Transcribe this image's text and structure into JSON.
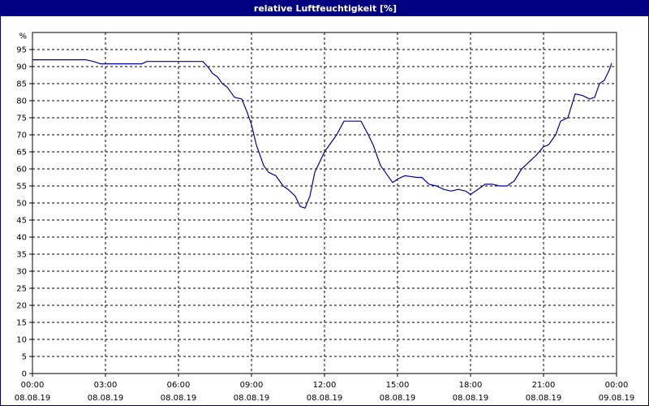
{
  "window": {
    "title": "relative Luftfeuchtigkeit [%]"
  },
  "colors": {
    "title_bar": "#000080",
    "series": "#0000a0",
    "grid": "#000000",
    "background": "#ffffff"
  },
  "chart_data": {
    "type": "line",
    "title": "relative Luftfeuchtigkeit [%]",
    "ylabel": "%",
    "xlabel": "",
    "ylim": [
      0,
      100
    ],
    "yticks": [
      0,
      5,
      10,
      15,
      20,
      25,
      30,
      35,
      40,
      45,
      50,
      55,
      60,
      65,
      70,
      75,
      80,
      85,
      90,
      95
    ],
    "xlim_hours": [
      0,
      24
    ],
    "xtick_labels": [
      {
        "time": "00:00",
        "date": "08.08.19"
      },
      {
        "time": "03:00",
        "date": "08.08.19"
      },
      {
        "time": "06:00",
        "date": "08.08.19"
      },
      {
        "time": "09:00",
        "date": "08.08.19"
      },
      {
        "time": "12:00",
        "date": "08.08.19"
      },
      {
        "time": "15:00",
        "date": "08.08.19"
      },
      {
        "time": "18:00",
        "date": "08.08.19"
      },
      {
        "time": "21:00",
        "date": "08.08.19"
      },
      {
        "time": "00:00",
        "date": "09.08.19"
      }
    ],
    "grid": true,
    "grid_style": "dashed",
    "series": [
      {
        "name": "",
        "x_hours": [
          0.0,
          2.2,
          2.5,
          2.8,
          4.5,
          4.7,
          7.0,
          7.2,
          7.4,
          7.6,
          7.8,
          8.0,
          8.3,
          8.6,
          8.8,
          9.0,
          9.2,
          9.5,
          9.7,
          10.0,
          10.3,
          10.5,
          10.8,
          11.0,
          11.2,
          11.4,
          11.6,
          11.8,
          12.0,
          12.3,
          12.5,
          12.8,
          13.0,
          13.5,
          13.8,
          14.0,
          14.3,
          14.5,
          14.8,
          15.0,
          15.3,
          15.8,
          16.0,
          16.3,
          16.6,
          16.9,
          17.2,
          17.5,
          17.8,
          18.0,
          18.3,
          18.6,
          18.9,
          19.2,
          19.5,
          19.8,
          20.1,
          20.4,
          20.7,
          21.0,
          21.2,
          21.5,
          21.7,
          22.0,
          22.3,
          22.6,
          22.9,
          23.1,
          23.3,
          23.5,
          23.7,
          23.8
        ],
        "values": [
          92,
          92,
          91.5,
          90.8,
          90.8,
          91.5,
          91.5,
          90,
          88,
          87,
          85,
          84,
          81,
          80.5,
          77,
          73,
          67,
          61,
          59,
          58,
          55,
          54,
          52,
          49,
          48.5,
          52,
          59,
          62,
          65,
          68,
          70,
          74,
          74,
          74,
          70,
          67,
          61,
          59,
          56,
          57,
          58,
          57.5,
          57.5,
          55.5,
          55,
          54,
          53.5,
          54,
          53.5,
          52.5,
          54,
          55.5,
          55.5,
          55,
          55,
          56.5,
          60,
          62,
          64,
          66.5,
          67,
          70,
          74,
          75,
          82,
          81.5,
          80.5,
          81,
          85,
          86,
          89,
          91
        ]
      }
    ]
  }
}
